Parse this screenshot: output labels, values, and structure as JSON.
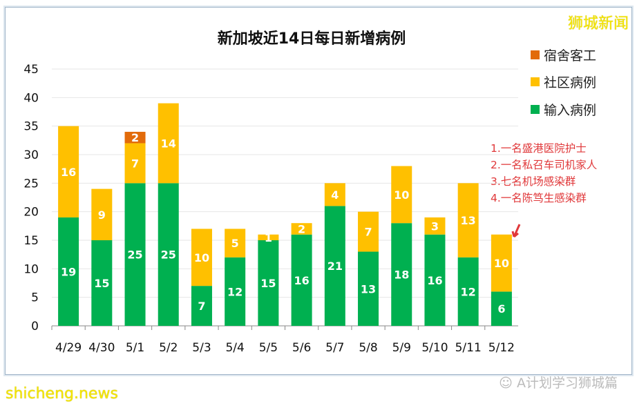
{
  "brand": "狮城新闻",
  "watermark": "shicheng.news",
  "wechat_account": "A计划学习狮城篇",
  "annotations": [
    "1.一名盛港医院护士",
    "2.一名私召车司机家人",
    "3.七名机场感染群",
    "4.一名陈笃生感染群"
  ],
  "chart_data": {
    "type": "bar",
    "stacked": true,
    "title": "新加坡近14日每日新增病例",
    "xlabel": "",
    "ylabel": "",
    "ylim": [
      0,
      45
    ],
    "yticks": [
      0,
      5,
      10,
      15,
      20,
      25,
      30,
      35,
      40,
      45
    ],
    "grid": true,
    "legend": "right",
    "categories": [
      "4/29",
      "4/30",
      "5/1",
      "5/2",
      "5/3",
      "5/4",
      "5/5",
      "5/6",
      "5/7",
      "5/8",
      "5/9",
      "5/10",
      "5/11",
      "5/12"
    ],
    "series": [
      {
        "name": "输入病例",
        "color": "#00b050",
        "values": [
          19,
          15,
          25,
          25,
          7,
          12,
          15,
          16,
          21,
          13,
          18,
          16,
          12,
          6
        ]
      },
      {
        "name": "社区病例",
        "color": "#ffc000",
        "values": [
          16,
          9,
          7,
          14,
          10,
          5,
          1,
          2,
          4,
          7,
          10,
          3,
          13,
          10
        ]
      },
      {
        "name": "宿舍客工",
        "color": "#e26b0a",
        "values": [
          0,
          0,
          2,
          0,
          0,
          0,
          0,
          0,
          0,
          0,
          0,
          0,
          0,
          0
        ]
      }
    ]
  }
}
